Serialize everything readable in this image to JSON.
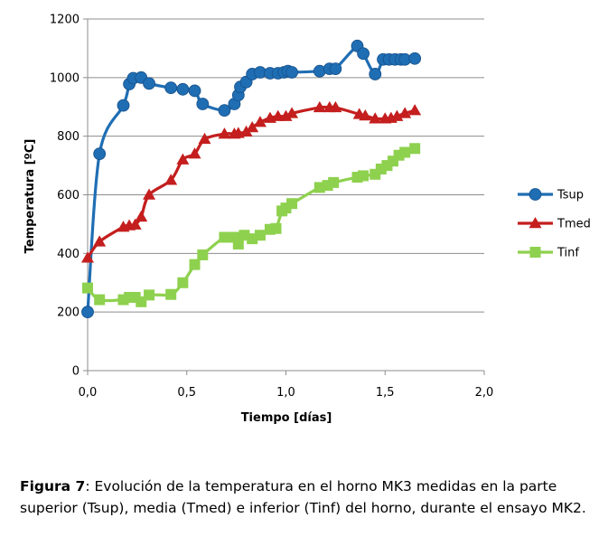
{
  "chart_data": {
    "type": "line",
    "xlabel": "Tiempo [días]",
    "ylabel": "Temperatura [ºC]",
    "xlim": [
      0,
      2
    ],
    "ylim": [
      0,
      1200
    ],
    "x_ticks": [
      0,
      0.5,
      1.0,
      1.5,
      2.0
    ],
    "x_tick_labels": [
      "0,0",
      "0,5",
      "1,0",
      "1,5",
      "2,0"
    ],
    "y_ticks": [
      0,
      200,
      400,
      600,
      800,
      1000,
      1200
    ],
    "y_tick_labels": [
      "0",
      "200",
      "400",
      "600",
      "800",
      "1000",
      "1200"
    ],
    "grid": "horizontal",
    "legend_position": "right",
    "series": [
      {
        "name": "Tsup",
        "color": "#1f6eb4",
        "marker": "circle",
        "points": [
          [
            0.0,
            200
          ],
          [
            0.06,
            740
          ],
          [
            0.18,
            905
          ],
          [
            0.21,
            978
          ],
          [
            0.23,
            998
          ],
          [
            0.27,
            1000
          ],
          [
            0.31,
            980
          ],
          [
            0.42,
            965
          ],
          [
            0.48,
            960
          ],
          [
            0.54,
            955
          ],
          [
            0.58,
            910
          ],
          [
            0.69,
            888
          ],
          [
            0.74,
            910
          ],
          [
            0.76,
            940
          ],
          [
            0.77,
            968
          ],
          [
            0.8,
            985
          ],
          [
            0.83,
            1012
          ],
          [
            0.87,
            1018
          ],
          [
            0.92,
            1015
          ],
          [
            0.96,
            1015
          ],
          [
            0.99,
            1018
          ],
          [
            1.01,
            1022
          ],
          [
            1.03,
            1018
          ],
          [
            1.17,
            1022
          ],
          [
            1.22,
            1030
          ],
          [
            1.25,
            1030
          ],
          [
            1.36,
            1108
          ],
          [
            1.39,
            1082
          ],
          [
            1.45,
            1012
          ],
          [
            1.49,
            1062
          ],
          [
            1.52,
            1062
          ],
          [
            1.55,
            1062
          ],
          [
            1.58,
            1062
          ],
          [
            1.6,
            1062
          ],
          [
            1.65,
            1065
          ]
        ]
      },
      {
        "name": "Tmed",
        "color": "#c41e1e",
        "marker": "triangle",
        "points": [
          [
            0.0,
            385
          ],
          [
            0.06,
            440
          ],
          [
            0.18,
            490
          ],
          [
            0.21,
            495
          ],
          [
            0.24,
            498
          ],
          [
            0.27,
            525
          ],
          [
            0.31,
            600
          ],
          [
            0.42,
            650
          ],
          [
            0.48,
            720
          ],
          [
            0.54,
            740
          ],
          [
            0.59,
            790
          ],
          [
            0.69,
            808
          ],
          [
            0.74,
            808
          ],
          [
            0.76,
            810
          ],
          [
            0.8,
            815
          ],
          [
            0.83,
            830
          ],
          [
            0.87,
            848
          ],
          [
            0.92,
            862
          ],
          [
            0.96,
            868
          ],
          [
            1.0,
            868
          ],
          [
            1.03,
            878
          ],
          [
            1.17,
            898
          ],
          [
            1.22,
            898
          ],
          [
            1.25,
            898
          ],
          [
            1.37,
            875
          ],
          [
            1.4,
            870
          ],
          [
            1.45,
            860
          ],
          [
            1.5,
            860
          ],
          [
            1.53,
            862
          ],
          [
            1.56,
            868
          ],
          [
            1.6,
            878
          ],
          [
            1.65,
            888
          ]
        ]
      },
      {
        "name": "Tinf",
        "color": "#8ed14e",
        "marker": "square",
        "points": [
          [
            0.0,
            282
          ],
          [
            0.06,
            242
          ],
          [
            0.18,
            242
          ],
          [
            0.21,
            250
          ],
          [
            0.24,
            250
          ],
          [
            0.27,
            235
          ],
          [
            0.31,
            258
          ],
          [
            0.42,
            260
          ],
          [
            0.48,
            300
          ],
          [
            0.54,
            362
          ],
          [
            0.58,
            395
          ],
          [
            0.69,
            455
          ],
          [
            0.74,
            455
          ],
          [
            0.76,
            432
          ],
          [
            0.79,
            462
          ],
          [
            0.83,
            450
          ],
          [
            0.87,
            462
          ],
          [
            0.92,
            482
          ],
          [
            0.95,
            485
          ],
          [
            0.98,
            545
          ],
          [
            1.0,
            555
          ],
          [
            1.03,
            570
          ],
          [
            1.17,
            625
          ],
          [
            1.21,
            632
          ],
          [
            1.24,
            642
          ],
          [
            1.36,
            660
          ],
          [
            1.39,
            665
          ],
          [
            1.45,
            670
          ],
          [
            1.48,
            688
          ],
          [
            1.51,
            700
          ],
          [
            1.54,
            715
          ],
          [
            1.57,
            735
          ],
          [
            1.6,
            745
          ],
          [
            1.65,
            758
          ]
        ]
      }
    ]
  },
  "caption": {
    "label": "Figura 7",
    "text": ": Evolución de la temperatura en el horno MK3 medidas en la parte superior (Tsup), media (Tmed) e inferior (Tinf) del horno, durante el ensayo MK2."
  }
}
